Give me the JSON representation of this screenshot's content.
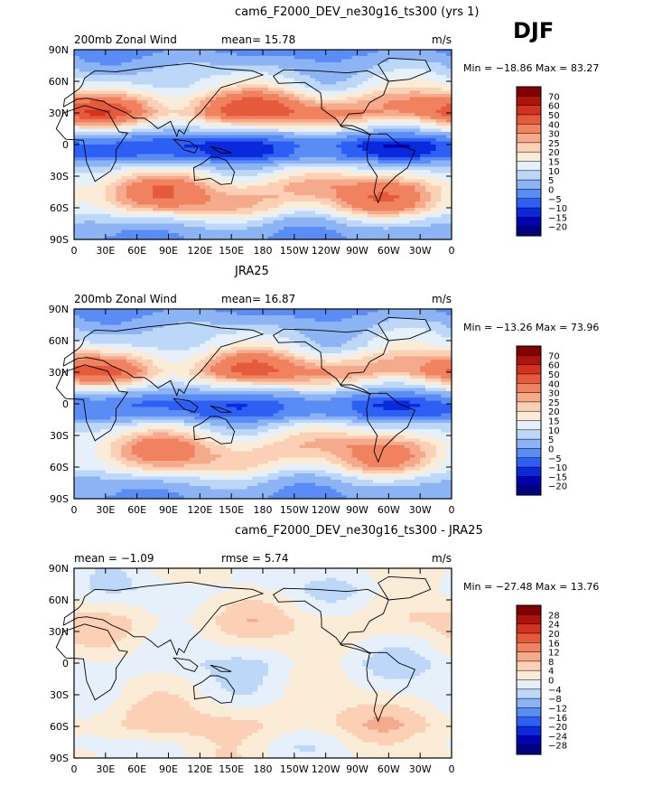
{
  "season": "DJF",
  "x_ticks": [
    "0",
    "30E",
    "60E",
    "90E",
    "120E",
    "150E",
    "180",
    "150W",
    "120W",
    "90W",
    "60W",
    "30W",
    "0"
  ],
  "y_ticks": [
    "90N",
    "60N",
    "30N",
    "0",
    "30S",
    "60S",
    "90S"
  ],
  "colors": {
    "cold": [
      "#000080",
      "#0000b4",
      "#0a28dc",
      "#2d5ff5",
      "#5a8cf5",
      "#8cb4f5",
      "#bcd7f8",
      "#e6f0fb"
    ],
    "warm": [
      "#fbecd8",
      "#fbd0b4",
      "#f5aa8c",
      "#f0825f",
      "#e65a3c",
      "#d2321e",
      "#af140a",
      "#820000"
    ]
  },
  "chart_data": [
    {
      "type": "heatmap",
      "title": "cam6_F2000_DEV_ne30g16_ts300 (yrs 1)",
      "left_label": "200mb Zonal Wind",
      "center_label": "mean=  15.78",
      "units": "m/s",
      "stats": "Min = −18.86 Max =  83.27",
      "colorbar_levels": [
        "70",
        "60",
        "50",
        "40",
        "30",
        "25",
        "20",
        "15",
        "10",
        "5",
        "0",
        "−5",
        "−10",
        "−15",
        "−20"
      ],
      "ylim": [
        -90,
        90
      ],
      "xlim": [
        0,
        360
      ],
      "profile": {
        "lat": [
          90,
          70,
          55,
          40,
          30,
          20,
          10,
          0,
          -10,
          -20,
          -30,
          -40,
          -50,
          -60,
          -70,
          -80,
          -90
        ],
        "value": [
          -2,
          6,
          14,
          32,
          38,
          20,
          2,
          -10,
          -8,
          6,
          18,
          28,
          30,
          24,
          10,
          2,
          0
        ]
      }
    },
    {
      "type": "heatmap",
      "title": "JRA25",
      "left_label": "200mb Zonal Wind",
      "center_label": "mean=  16.87",
      "units": "m/s",
      "stats": "Min = −13.26 Max =  73.96",
      "colorbar_levels": [
        "70",
        "60",
        "50",
        "40",
        "30",
        "25",
        "20",
        "15",
        "10",
        "5",
        "0",
        "−5",
        "−10",
        "−15",
        "−20"
      ],
      "ylim": [
        -90,
        90
      ],
      "xlim": [
        0,
        360
      ],
      "profile": {
        "lat": [
          90,
          70,
          55,
          40,
          30,
          20,
          10,
          0,
          -10,
          -20,
          -30,
          -40,
          -50,
          -60,
          -70,
          -80,
          -90
        ],
        "value": [
          -2,
          6,
          12,
          28,
          34,
          18,
          2,
          -7,
          -5,
          8,
          18,
          26,
          26,
          20,
          8,
          2,
          0
        ]
      }
    },
    {
      "type": "heatmap",
      "title": "cam6_F2000_DEV_ne30g16_ts300 - JRA25",
      "left_label": "mean =   −1.09",
      "center_label": "rmse =    5.74",
      "units": "m/s",
      "stats": "Min = −27.48 Max =  13.76",
      "colorbar_levels": [
        "28",
        "24",
        "20",
        "16",
        "12",
        "8",
        "4",
        "0",
        "−4",
        "−8",
        "−12",
        "−16",
        "−20",
        "−24",
        "−28"
      ],
      "ylim": [
        -90,
        90
      ],
      "xlim": [
        0,
        360
      ],
      "profile": {
        "lat": [
          90,
          70,
          55,
          40,
          30,
          20,
          10,
          0,
          -10,
          -20,
          -30,
          -40,
          -50,
          -60,
          -70,
          -80,
          -90
        ],
        "value": [
          0,
          -2,
          1,
          4,
          3,
          1,
          -1,
          -3,
          -2,
          -1,
          0,
          2,
          4,
          5,
          2,
          0,
          0
        ]
      }
    }
  ]
}
